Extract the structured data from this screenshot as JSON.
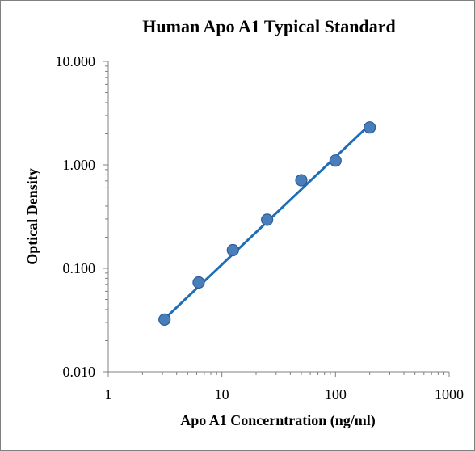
{
  "chart_data": {
    "type": "scatter",
    "title": "Human Apo A1 Typical Standard",
    "xlabel": "Apo A1 Concerntration (ng/ml)",
    "ylabel": "Optical Density",
    "xscale": "log",
    "yscale": "log",
    "xlim": [
      1,
      1000
    ],
    "ylim": [
      0.01,
      10
    ],
    "x_ticks": [
      "1",
      "10",
      "100",
      "1000"
    ],
    "y_ticks": [
      "0.010",
      "0.100",
      "1.000",
      "10.000"
    ],
    "grid": false,
    "legend": "none",
    "series": [
      {
        "x": [
          3.13,
          6.25,
          12.5,
          25,
          50,
          100,
          200
        ],
        "y": [
          0.032,
          0.073,
          0.15,
          0.295,
          0.71,
          1.1,
          2.3
        ],
        "marker_color": "#4a7ebb",
        "trendline": {
          "type": "power",
          "x": [
            3.13,
            200
          ],
          "y": [
            0.0325,
            2.45
          ],
          "color": "#1f6eb5"
        }
      }
    ]
  }
}
